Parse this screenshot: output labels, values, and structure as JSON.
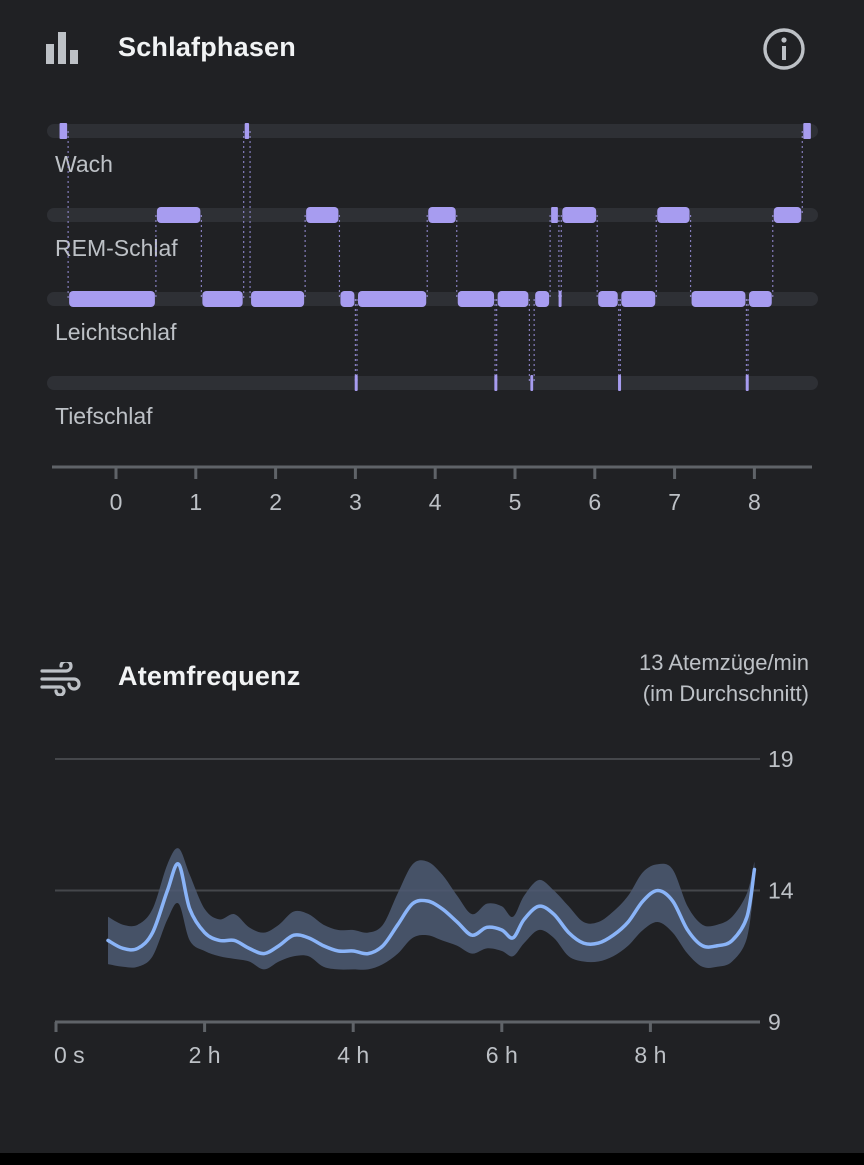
{
  "sleep": {
    "title": "Schlafphasen",
    "icons": {
      "header": "bar-chart-icon",
      "info": "info-icon"
    },
    "colors": {
      "bar": "#a79cf0",
      "track": "#2e3035",
      "axis": "#5f6368",
      "label": "#bdc1c6"
    }
  },
  "breathing": {
    "title": "Atemfrequenz",
    "average": "13 Atemzüge/min",
    "average_note": "(im Durchschnitt)",
    "icons": {
      "header": "wind-icon"
    },
    "colors": {
      "line": "#8ab4f8",
      "band": "#4d5a73",
      "grid": "#45474b"
    }
  },
  "chart_data": [
    {
      "type": "timeline",
      "title": "Schlafphasen",
      "stages": [
        "Wach",
        "REM-Schlaf",
        "Leichtschlaf",
        "Tiefschlaf"
      ],
      "x_ticks": [
        "0",
        "1",
        "2",
        "3",
        "4",
        "5",
        "6",
        "7",
        "8"
      ],
      "xlim": [
        -0.8,
        8.75
      ],
      "segments": [
        {
          "stage": "Wach",
          "start": -0.72,
          "end": -0.6
        },
        {
          "stage": "Leichtschlaf",
          "start": -0.6,
          "end": 0.5
        },
        {
          "stage": "REM-Schlaf",
          "start": 0.5,
          "end": 1.07
        },
        {
          "stage": "Leichtschlaf",
          "start": 1.07,
          "end": 1.6
        },
        {
          "stage": "Wach",
          "start": 1.6,
          "end": 1.68
        },
        {
          "stage": "Leichtschlaf",
          "start": 1.68,
          "end": 2.37
        },
        {
          "stage": "REM-Schlaf",
          "start": 2.37,
          "end": 2.8
        },
        {
          "stage": "Leichtschlaf",
          "start": 2.8,
          "end": 3.0
        },
        {
          "stage": "Tiefschlaf",
          "start": 3.0,
          "end": 3.02
        },
        {
          "stage": "Leichtschlaf",
          "start": 3.02,
          "end": 3.9
        },
        {
          "stage": "REM-Schlaf",
          "start": 3.9,
          "end": 4.27
        },
        {
          "stage": "Leichtschlaf",
          "start": 4.27,
          "end": 4.75
        },
        {
          "stage": "Tiefschlaf",
          "start": 4.75,
          "end": 4.77
        },
        {
          "stage": "Leichtschlaf",
          "start": 4.77,
          "end": 5.18
        },
        {
          "stage": "Tiefschlaf",
          "start": 5.18,
          "end": 5.24
        },
        {
          "stage": "Leichtschlaf",
          "start": 5.24,
          "end": 5.44
        },
        {
          "stage": "REM-Schlaf",
          "start": 5.44,
          "end": 5.55
        },
        {
          "stage": "Leichtschlaf",
          "start": 5.55,
          "end": 5.58
        },
        {
          "stage": "REM-Schlaf",
          "start": 5.58,
          "end": 6.03
        },
        {
          "stage": "Leichtschlaf",
          "start": 6.03,
          "end": 6.3
        },
        {
          "stage": "Tiefschlaf",
          "start": 6.3,
          "end": 6.32
        },
        {
          "stage": "Leichtschlaf",
          "start": 6.32,
          "end": 6.77
        },
        {
          "stage": "REM-Schlaf",
          "start": 6.77,
          "end": 7.2
        },
        {
          "stage": "Leichtschlaf",
          "start": 7.2,
          "end": 7.9
        },
        {
          "stage": "Tiefschlaf",
          "start": 7.9,
          "end": 7.92
        },
        {
          "stage": "Leichtschlaf",
          "start": 7.92,
          "end": 8.23
        },
        {
          "stage": "REM-Schlaf",
          "start": 8.23,
          "end": 8.6
        },
        {
          "stage": "Wach",
          "start": 8.6,
          "end": 8.72
        }
      ]
    },
    {
      "type": "line",
      "title": "Atemfrequenz",
      "x_tick_labels": [
        "0 s",
        "2 h",
        "4 h",
        "6 h",
        "8 h"
      ],
      "x_tick_hours": [
        0,
        2,
        4,
        6,
        8
      ],
      "y_ticks": [
        9,
        14,
        19
      ],
      "ylim": [
        9,
        19
      ],
      "xlim_hours": [
        0,
        9.45
      ],
      "series": [
        {
          "x_hours": [
            0.7,
            0.9,
            1.1,
            1.3,
            1.5,
            1.65,
            1.8,
            2.0,
            2.2,
            2.4,
            2.6,
            2.8,
            3.0,
            3.2,
            3.4,
            3.6,
            3.8,
            4.0,
            4.2,
            4.4,
            4.6,
            4.8,
            5.0,
            5.2,
            5.4,
            5.6,
            5.8,
            6.0,
            6.15,
            6.3,
            6.5,
            6.7,
            6.9,
            7.1,
            7.3,
            7.5,
            7.7,
            7.9,
            8.1,
            8.3,
            8.5,
            8.7,
            8.9,
            9.1,
            9.3,
            9.4
          ],
          "values": [
            12.1,
            11.8,
            11.8,
            12.4,
            14.0,
            15.0,
            13.3,
            12.4,
            12.1,
            12.1,
            11.8,
            11.6,
            11.9,
            12.3,
            12.2,
            11.9,
            11.7,
            11.7,
            11.6,
            11.9,
            12.7,
            13.5,
            13.6,
            13.3,
            12.8,
            12.3,
            12.6,
            12.5,
            12.2,
            12.9,
            13.4,
            13.1,
            12.4,
            12.0,
            12.0,
            12.3,
            12.8,
            13.6,
            14.0,
            13.6,
            12.5,
            11.9,
            11.9,
            12.1,
            13.0,
            14.8
          ],
          "band_low": [
            11.2,
            11.1,
            11.1,
            11.5,
            12.9,
            13.5,
            12.1,
            11.7,
            11.5,
            11.4,
            11.3,
            11.0,
            11.3,
            11.5,
            11.5,
            11.1,
            11.0,
            11.0,
            11.0,
            11.2,
            11.6,
            12.2,
            12.3,
            12.1,
            11.9,
            11.6,
            11.8,
            11.7,
            11.5,
            12.0,
            12.5,
            12.2,
            11.5,
            11.3,
            11.3,
            11.5,
            11.9,
            12.5,
            12.8,
            12.4,
            11.6,
            11.1,
            11.1,
            11.3,
            12.2,
            14.3
          ],
          "band_high": [
            13.0,
            12.7,
            12.7,
            13.3,
            15.0,
            15.6,
            14.6,
            13.3,
            12.9,
            13.1,
            12.6,
            12.4,
            12.7,
            13.2,
            13.1,
            12.7,
            12.5,
            12.5,
            12.4,
            12.7,
            13.9,
            15.0,
            15.1,
            14.6,
            13.8,
            13.1,
            13.5,
            13.4,
            13.0,
            13.8,
            14.4,
            14.0,
            13.4,
            12.8,
            12.8,
            13.2,
            13.8,
            14.7,
            15.0,
            14.8,
            13.4,
            12.7,
            12.7,
            13.0,
            13.9,
            15.1
          ]
        }
      ]
    }
  ]
}
